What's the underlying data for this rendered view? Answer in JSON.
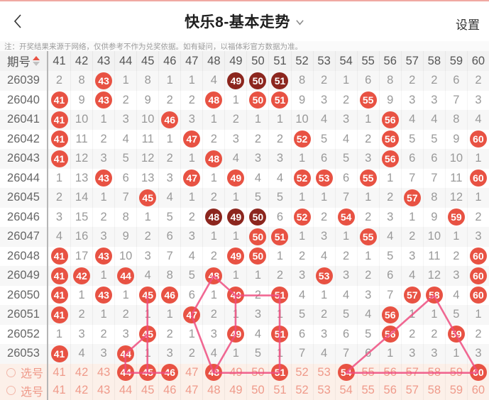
{
  "nav": {
    "title": "快乐8-基本走势",
    "settings_label": "设置"
  },
  "note": {
    "text": "注：开奖结果来源于网络，仅供参考不作为兑奖依据。如有疑问，以福体彩官方数据为准。"
  },
  "table": {
    "period_header": "期号",
    "columns": [
      41,
      42,
      43,
      44,
      45,
      46,
      47,
      48,
      49,
      50,
      51,
      52,
      53,
      54,
      55,
      56,
      57,
      58,
      59,
      60
    ],
    "rows": [
      {
        "period": "26039",
        "values": [
          2,
          8,
          43,
          1,
          8,
          1,
          1,
          4,
          49,
          50,
          51,
          8,
          2,
          1,
          6,
          8,
          2,
          2,
          6,
          2
        ],
        "hits": [
          43,
          49,
          50,
          51
        ],
        "dark": [
          49,
          50,
          51
        ]
      },
      {
        "period": "26040",
        "values": [
          41,
          9,
          43,
          2,
          9,
          2,
          2,
          48,
          1,
          50,
          51,
          9,
          3,
          2,
          55,
          9,
          3,
          3,
          7,
          3
        ],
        "hits": [
          41,
          43,
          48,
          50,
          51,
          55
        ],
        "dark": []
      },
      {
        "period": "26041",
        "values": [
          41,
          10,
          1,
          3,
          10,
          46,
          3,
          1,
          2,
          1,
          1,
          10,
          4,
          3,
          1,
          56,
          4,
          4,
          8,
          4
        ],
        "hits": [
          41,
          46,
          56
        ],
        "dark": []
      },
      {
        "period": "26042",
        "values": [
          41,
          11,
          2,
          4,
          11,
          1,
          47,
          2,
          3,
          2,
          2,
          52,
          5,
          4,
          2,
          56,
          5,
          5,
          9,
          60
        ],
        "hits": [
          41,
          47,
          52,
          56,
          60
        ],
        "dark": []
      },
      {
        "period": "26043",
        "values": [
          41,
          12,
          3,
          5,
          12,
          2,
          1,
          48,
          4,
          3,
          3,
          1,
          6,
          5,
          3,
          56,
          6,
          6,
          10,
          1
        ],
        "hits": [
          41,
          48,
          56
        ],
        "dark": []
      },
      {
        "period": "26044",
        "values": [
          1,
          13,
          43,
          6,
          13,
          3,
          47,
          1,
          49,
          4,
          4,
          52,
          53,
          6,
          55,
          1,
          7,
          7,
          11,
          60
        ],
        "hits": [
          43,
          47,
          49,
          52,
          53,
          55,
          60
        ],
        "dark": []
      },
      {
        "period": "26045",
        "values": [
          2,
          14,
          1,
          7,
          45,
          4,
          1,
          2,
          1,
          5,
          5,
          1,
          1,
          7,
          1,
          2,
          57,
          8,
          12,
          1
        ],
        "hits": [
          45,
          57
        ],
        "dark": []
      },
      {
        "period": "26046",
        "values": [
          3,
          15,
          2,
          8,
          1,
          5,
          2,
          48,
          49,
          50,
          6,
          52,
          2,
          54,
          2,
          3,
          1,
          9,
          59,
          2
        ],
        "hits": [
          48,
          49,
          50,
          52,
          54,
          59
        ],
        "dark": [
          48,
          49,
          50
        ]
      },
      {
        "period": "26047",
        "values": [
          4,
          16,
          3,
          9,
          2,
          6,
          3,
          1,
          1,
          50,
          51,
          1,
          3,
          1,
          55,
          4,
          2,
          10,
          1,
          3
        ],
        "hits": [
          50,
          51,
          55
        ],
        "dark": []
      },
      {
        "period": "26048",
        "values": [
          41,
          17,
          43,
          10,
          3,
          7,
          4,
          2,
          49,
          50,
          1,
          2,
          4,
          2,
          1,
          5,
          3,
          11,
          2,
          60
        ],
        "hits": [
          41,
          43,
          49,
          50,
          60
        ],
        "dark": []
      },
      {
        "period": "26049",
        "values": [
          41,
          42,
          1,
          44,
          4,
          8,
          5,
          48,
          1,
          1,
          2,
          3,
          53,
          3,
          2,
          6,
          4,
          12,
          3,
          60
        ],
        "hits": [
          41,
          42,
          44,
          48,
          53,
          60
        ],
        "dark": []
      },
      {
        "period": "26050",
        "values": [
          41,
          1,
          43,
          1,
          45,
          46,
          6,
          1,
          49,
          2,
          51,
          4,
          1,
          4,
          3,
          7,
          57,
          58,
          4,
          60
        ],
        "hits": [
          41,
          43,
          45,
          46,
          49,
          51,
          57,
          58,
          60
        ],
        "dark": []
      },
      {
        "period": "26051",
        "values": [
          41,
          2,
          1,
          2,
          1,
          1,
          47,
          2,
          1,
          3,
          1,
          5,
          2,
          5,
          4,
          56,
          1,
          1,
          5,
          1
        ],
        "hits": [
          41,
          47,
          56
        ],
        "dark": []
      },
      {
        "period": "26052",
        "values": [
          1,
          3,
          2,
          3,
          45,
          2,
          1,
          3,
          49,
          4,
          51,
          6,
          3,
          6,
          5,
          56,
          2,
          2,
          59,
          2
        ],
        "hits": [
          45,
          49,
          51,
          56,
          59
        ],
        "dark": []
      },
      {
        "period": "26053",
        "values": [
          41,
          4,
          3,
          44,
          1,
          3,
          2,
          4,
          1,
          5,
          1,
          7,
          4,
          7,
          6,
          1,
          3,
          3,
          1,
          3
        ],
        "hits": [
          41,
          44
        ],
        "dark": []
      }
    ],
    "select_rows": [
      {
        "label": "选号",
        "numbers": [
          41,
          42,
          43,
          44,
          45,
          46,
          47,
          48,
          49,
          50,
          51,
          52,
          53,
          54,
          55,
          56,
          57,
          58,
          59,
          60
        ],
        "selected": [
          44,
          45,
          46,
          48,
          51,
          54,
          60
        ]
      },
      {
        "label": "选号",
        "numbers": [
          41,
          42,
          43,
          44,
          45,
          46,
          47,
          48,
          49,
          50,
          51,
          52,
          53,
          54,
          55,
          56,
          57,
          58,
          59,
          60
        ],
        "selected": []
      }
    ],
    "lines": [
      {
        "from": {
          "col": 48,
          "row": "26049"
        },
        "to": {
          "col": 49,
          "row": "26050"
        }
      },
      {
        "from": {
          "col": 48,
          "row": "26049"
        },
        "to": {
          "col": 47,
          "row": "26051"
        }
      },
      {
        "from": {
          "col": 47,
          "row": "26051"
        },
        "to": {
          "col": 48,
          "row": "sel"
        }
      },
      {
        "from": {
          "col": 49,
          "row": "26050"
        },
        "to": {
          "col": 51,
          "row": "26050"
        }
      },
      {
        "from": {
          "col": 49,
          "row": "26050"
        },
        "to": {
          "col": 49,
          "row": "26052"
        }
      },
      {
        "from": {
          "col": 49,
          "row": "26052"
        },
        "to": {
          "col": 48,
          "row": "sel"
        }
      },
      {
        "from": {
          "col": 51,
          "row": "26050"
        },
        "to": {
          "col": 51,
          "row": "26052"
        }
      },
      {
        "from": {
          "col": 51,
          "row": "26052"
        },
        "to": {
          "col": 51,
          "row": "sel"
        }
      },
      {
        "from": {
          "col": 45,
          "row": "26050"
        },
        "to": {
          "col": 45,
          "row": "26052"
        }
      },
      {
        "from": {
          "col": 45,
          "row": "26052"
        },
        "to": {
          "col": 45,
          "row": "sel"
        }
      },
      {
        "from": {
          "col": 44,
          "row": "26053"
        },
        "to": {
          "col": 45,
          "row": "26052"
        }
      },
      {
        "from": {
          "col": 44,
          "row": "26053"
        },
        "to": {
          "col": 44,
          "row": "sel"
        }
      },
      {
        "from": {
          "col": 44,
          "row": "sel"
        },
        "to": {
          "col": 46,
          "row": "sel"
        }
      },
      {
        "from": {
          "col": 48,
          "row": "sel"
        },
        "to": {
          "col": 51,
          "row": "sel"
        }
      },
      {
        "from": {
          "col": 54,
          "row": "sel"
        },
        "to": {
          "col": 56,
          "row": "26052"
        }
      },
      {
        "from": {
          "col": 56,
          "row": "26052"
        },
        "to": {
          "col": 58,
          "row": "26050"
        }
      },
      {
        "from": {
          "col": 58,
          "row": "26050"
        },
        "to": {
          "col": 59,
          "row": "26052"
        }
      },
      {
        "from": {
          "col": 59,
          "row": "26052"
        },
        "to": {
          "col": 60,
          "row": "sel"
        }
      },
      {
        "from": {
          "col": 54,
          "row": "sel"
        },
        "to": {
          "col": 60,
          "row": "sel"
        }
      }
    ]
  },
  "colors": {
    "hit_circle": "#e85243",
    "hit_circle_dark": "#8c261e",
    "trend_line": "#ee4d80",
    "select_text": "#ef9a8a",
    "sort_up": "#e85243"
  }
}
